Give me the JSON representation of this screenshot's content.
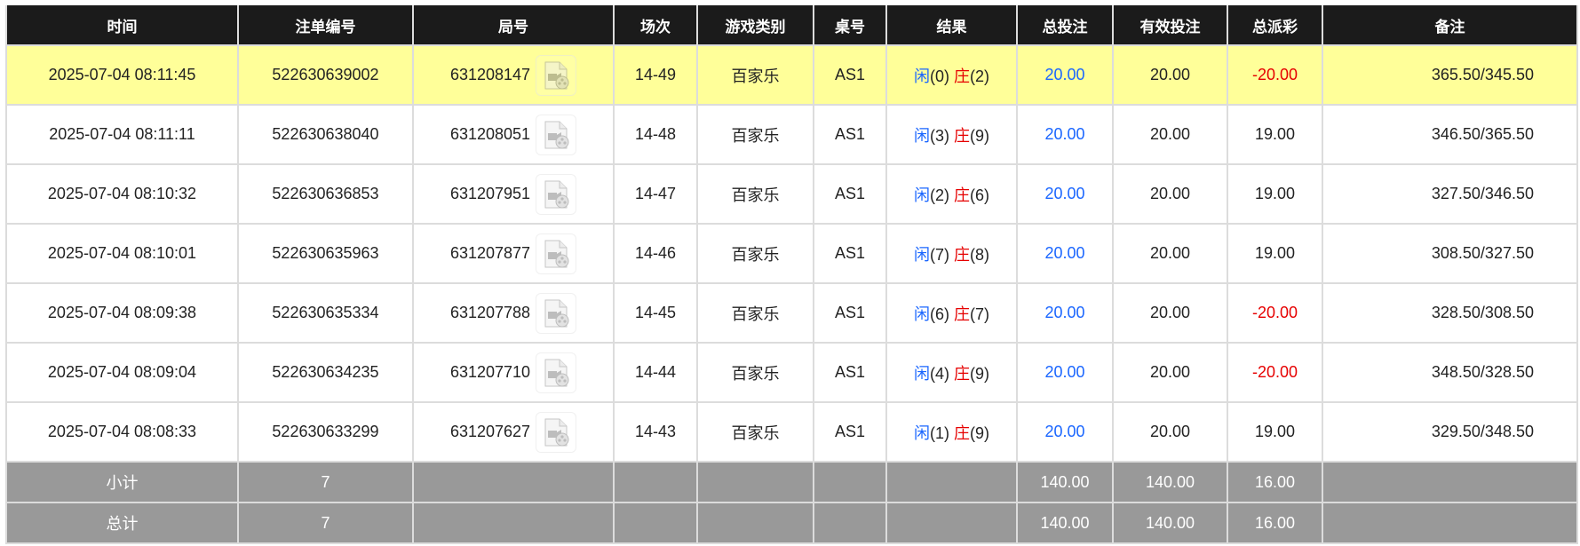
{
  "headers": [
    "时间",
    "注单编号",
    "局号",
    "场次",
    "游戏类别",
    "桌号",
    "结果",
    "总投注",
    "有效投注",
    "总派彩",
    "备注"
  ],
  "rows": [
    {
      "time": "2025-07-04 08:11:45",
      "bet_id": "522630639002",
      "round": "631208147",
      "session": "14-49",
      "game": "百家乐",
      "table": "AS1",
      "player_label": "闲",
      "player": "(0)",
      "banker_label": "庄",
      "banker": "(2)",
      "total_bet": "20.00",
      "valid_bet": "20.00",
      "payout": "-20.00",
      "payout_negative": true,
      "remark": "365.50/345.50",
      "highlighted": true
    },
    {
      "time": "2025-07-04 08:11:11",
      "bet_id": "522630638040",
      "round": "631208051",
      "session": "14-48",
      "game": "百家乐",
      "table": "AS1",
      "player_label": "闲",
      "player": "(3)",
      "banker_label": "庄",
      "banker": "(9)",
      "total_bet": "20.00",
      "valid_bet": "20.00",
      "payout": "19.00",
      "payout_negative": false,
      "remark": "346.50/365.50"
    },
    {
      "time": "2025-07-04 08:10:32",
      "bet_id": "522630636853",
      "round": "631207951",
      "session": "14-47",
      "game": "百家乐",
      "table": "AS1",
      "player_label": "闲",
      "player": "(2)",
      "banker_label": "庄",
      "banker": "(6)",
      "total_bet": "20.00",
      "valid_bet": "20.00",
      "payout": "19.00",
      "payout_negative": false,
      "remark": "327.50/346.50"
    },
    {
      "time": "2025-07-04 08:10:01",
      "bet_id": "522630635963",
      "round": "631207877",
      "session": "14-46",
      "game": "百家乐",
      "table": "AS1",
      "player_label": "闲",
      "player": "(7)",
      "banker_label": "庄",
      "banker": "(8)",
      "total_bet": "20.00",
      "valid_bet": "20.00",
      "payout": "19.00",
      "payout_negative": false,
      "remark": "308.50/327.50"
    },
    {
      "time": "2025-07-04 08:09:38",
      "bet_id": "522630635334",
      "round": "631207788",
      "session": "14-45",
      "game": "百家乐",
      "table": "AS1",
      "player_label": "闲",
      "player": "(6)",
      "banker_label": "庄",
      "banker": "(7)",
      "total_bet": "20.00",
      "valid_bet": "20.00",
      "payout": "-20.00",
      "payout_negative": true,
      "remark": "328.50/308.50"
    },
    {
      "time": "2025-07-04 08:09:04",
      "bet_id": "522630634235",
      "round": "631207710",
      "session": "14-44",
      "game": "百家乐",
      "table": "AS1",
      "player_label": "闲",
      "player": "(4)",
      "banker_label": "庄",
      "banker": "(9)",
      "total_bet": "20.00",
      "valid_bet": "20.00",
      "payout": "-20.00",
      "payout_negative": true,
      "remark": "348.50/328.50"
    },
    {
      "time": "2025-07-04 08:08:33",
      "bet_id": "522630633299",
      "round": "631207627",
      "session": "14-43",
      "game": "百家乐",
      "table": "AS1",
      "player_label": "闲",
      "player": "(1)",
      "banker_label": "庄",
      "banker": "(9)",
      "total_bet": "20.00",
      "valid_bet": "20.00",
      "payout": "19.00",
      "payout_negative": false,
      "remark": "329.50/348.50"
    }
  ],
  "subtotal": {
    "label": "小计",
    "count": "7",
    "total_bet": "140.00",
    "valid_bet": "140.00",
    "payout": "16.00"
  },
  "total": {
    "label": "总计",
    "count": "7",
    "total_bet": "140.00",
    "valid_bet": "140.00",
    "payout": "16.00"
  },
  "colors": {
    "header_bg": "#1b1b1b",
    "highlight_row": "#ffff99",
    "player": "#1a66ff",
    "banker": "#e60000",
    "negative": "#e60000",
    "summary_bg": "#999999"
  },
  "icons": {
    "replay": "video-file-icon"
  }
}
